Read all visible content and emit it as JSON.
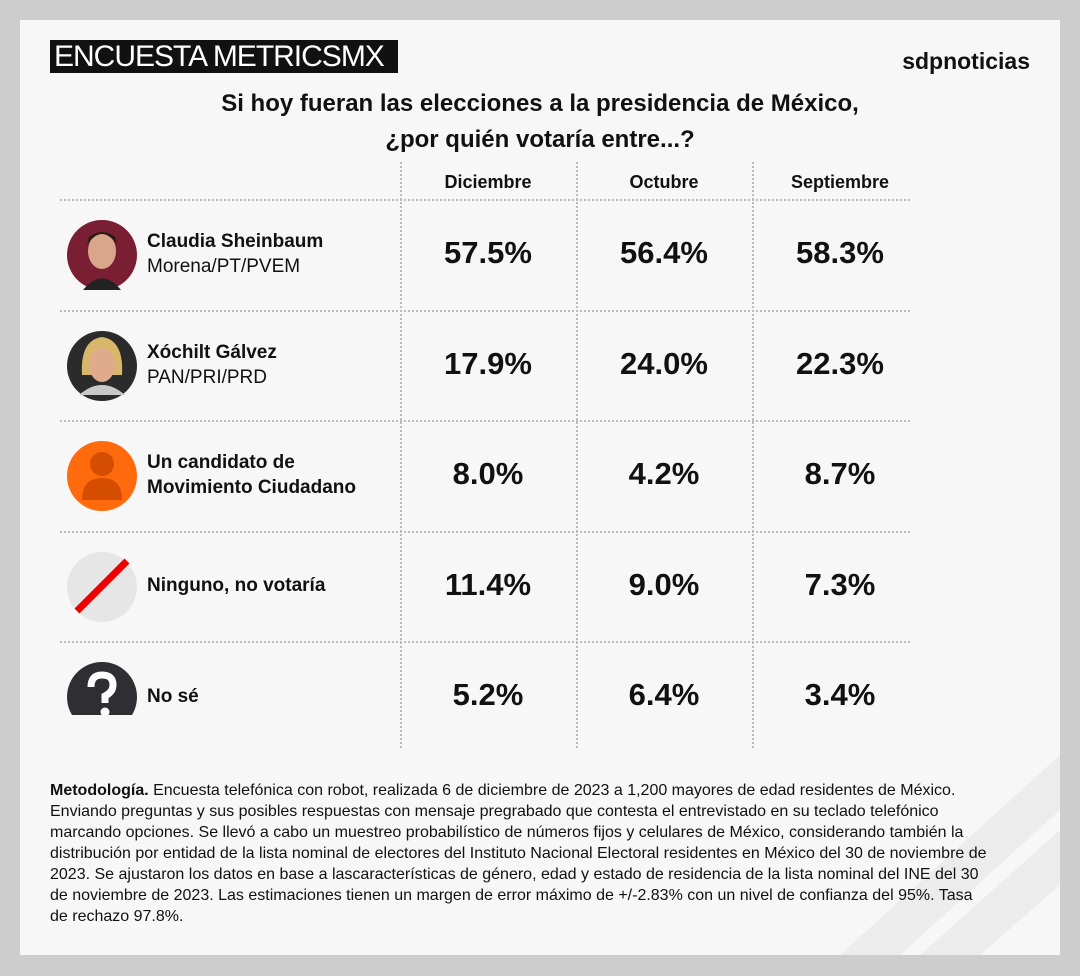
{
  "header": {
    "badge": "ENCUESTA METRICSMX",
    "brand": "sdpnoticias"
  },
  "title": [
    "Si hoy fueran las elecciones a la presidencia de México,",
    "¿por quién votaría entre...?"
  ],
  "table": {
    "columns": [
      "Diciembre",
      "Octubre",
      "Septiembre"
    ],
    "rows": [
      {
        "name": "Claudia Sheinbaum",
        "party": "Morena/PT/PVEM",
        "values": [
          "57.5%",
          "56.4%",
          "58.3%"
        ]
      },
      {
        "name": "Xóchilt Gálvez",
        "party": "PAN/PRI/PRD",
        "values": [
          "17.9%",
          "24.0%",
          "22.3%"
        ]
      },
      {
        "name": "Un candidato de Movimiento Ciudadano",
        "values": [
          "8.0%",
          "4.2%",
          "8.7%"
        ]
      },
      {
        "name": "Ninguno, no votaría",
        "values": [
          "11.4%",
          "9.0%",
          "7.3%"
        ]
      },
      {
        "name": "No sé",
        "values": [
          "5.2%",
          "6.4%",
          "3.4%"
        ]
      }
    ]
  },
  "methodology": {
    "label": "Metodología.",
    "text": "Encuesta telefónica con robot, realizada 6 de diciembre de 2023 a 1,200 mayores de edad residentes de México. Enviando preguntas y sus posibles respuestas con mensaje pregrabado que contesta el entrevistado en su teclado telefónico marcando opciones. Se llevó a cabo un muestreo probabilístico de números fijos y celulares de México, considerando también la distribución por entidad de la lista nominal de electores del Instituto Nacional Electoral residentes en México del 30 de noviembre de 2023. Se ajustaron los datos en base a lascaracterísticas de género, edad y estado de residencia de la lista nominal del INE del 30 de noviembre de 2023. Las estimaciones tienen un margen de error máximo de +/-2.83% con un nivel de confianza del 95%. Tasa de rechazo 97.8%."
  }
}
